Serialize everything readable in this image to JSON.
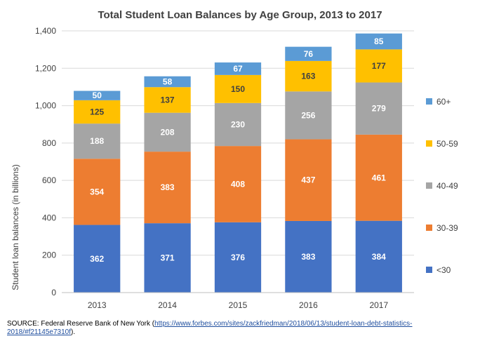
{
  "chart_data": {
    "type": "stacked-bar",
    "title": "Total Student Loan Balances by Age Group, 2013 to 2017",
    "xlabel": "",
    "ylabel": "Student loan balances (in billions)",
    "ylim": [
      0,
      1400
    ],
    "yticks": [
      0,
      200,
      400,
      600,
      800,
      1000,
      1200,
      1400
    ],
    "ytick_labels": [
      "0",
      "200",
      "400",
      "600",
      "800",
      "1,000",
      "1,200",
      "1,400"
    ],
    "categories": [
      "2013",
      "2014",
      "2015",
      "2016",
      "2017"
    ],
    "series": [
      {
        "name": "<30",
        "color": "#4472C4",
        "label_color": "#ffffff",
        "values": [
          362,
          371,
          376,
          383,
          384
        ]
      },
      {
        "name": "30-39",
        "color": "#ED7D31",
        "label_color": "#ffffff",
        "values": [
          354,
          383,
          408,
          437,
          461
        ]
      },
      {
        "name": "40-49",
        "color": "#A5A5A5",
        "label_color": "#ffffff",
        "values": [
          188,
          208,
          230,
          256,
          279
        ]
      },
      {
        "name": "50-59",
        "color": "#FFC000",
        "label_color": "#404040",
        "values": [
          125,
          137,
          150,
          163,
          177
        ]
      },
      {
        "name": "60+",
        "color": "#5B9BD5",
        "label_color": "#ffffff",
        "values": [
          50,
          58,
          67,
          76,
          85
        ]
      }
    ],
    "legend_position": "right",
    "grid": true
  },
  "source": {
    "prefix": "SOURCE: Federal Reserve Bank of New York (",
    "link_text": "https://www.forbes.com/sites/zackfriedman/2018/06/13/student-loan-debt-statistics-2018/#f21145e7310f",
    "suffix": ")."
  }
}
